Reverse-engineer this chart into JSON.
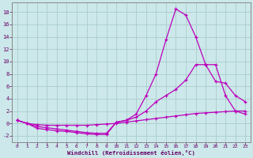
{
  "xlabel": "Windchill (Refroidissement éolien,°C)",
  "background_color": "#cce8ea",
  "grid_color": "#aacccc",
  "line_color": "#bb00bb",
  "xlim": [
    -0.5,
    23.5
  ],
  "ylim": [
    -3.0,
    19.5
  ],
  "xticks": [
    0,
    1,
    2,
    3,
    4,
    5,
    6,
    7,
    8,
    9,
    10,
    11,
    12,
    13,
    14,
    15,
    16,
    17,
    18,
    19,
    20,
    21,
    22,
    23
  ],
  "yticks": [
    -2,
    0,
    2,
    4,
    6,
    8,
    10,
    12,
    14,
    16,
    18
  ],
  "line_top_x": [
    0,
    1,
    2,
    3,
    4,
    5,
    6,
    7,
    8,
    9,
    10,
    11,
    12,
    13,
    14,
    15,
    16,
    17,
    18,
    19,
    20,
    21,
    22,
    23
  ],
  "line_top_y": [
    0.5,
    0.0,
    -0.8,
    -1.0,
    -1.2,
    -1.3,
    -1.5,
    -1.7,
    -1.8,
    -1.8,
    0.2,
    0.5,
    1.5,
    4.5,
    8.0,
    13.5,
    18.5,
    17.5,
    14.0,
    9.5,
    9.5,
    4.5,
    2.0,
    1.5
  ],
  "line_mid_x": [
    0,
    1,
    2,
    3,
    4,
    5,
    6,
    7,
    8,
    9,
    10,
    11,
    12,
    13,
    14,
    15,
    16,
    17,
    18,
    19,
    20,
    21,
    22,
    23
  ],
  "line_mid_y": [
    0.5,
    0.0,
    -0.5,
    -0.7,
    -0.9,
    -1.1,
    -1.3,
    -1.5,
    -1.6,
    -1.6,
    0.2,
    0.5,
    1.0,
    2.0,
    3.5,
    4.5,
    5.5,
    7.0,
    9.5,
    9.5,
    6.8,
    6.5,
    4.5,
    3.5
  ],
  "line_bot_x": [
    0,
    1,
    2,
    3,
    4,
    5,
    6,
    7,
    8,
    9,
    10,
    11,
    12,
    13,
    14,
    15,
    16,
    17,
    18,
    19,
    20,
    21,
    22,
    23
  ],
  "line_bot_y": [
    0.5,
    0.0,
    -0.2,
    -0.3,
    -0.3,
    -0.3,
    -0.3,
    -0.3,
    -0.2,
    -0.1,
    0.0,
    0.2,
    0.4,
    0.6,
    0.8,
    1.0,
    1.2,
    1.4,
    1.6,
    1.7,
    1.8,
    1.9,
    2.0,
    2.0
  ]
}
